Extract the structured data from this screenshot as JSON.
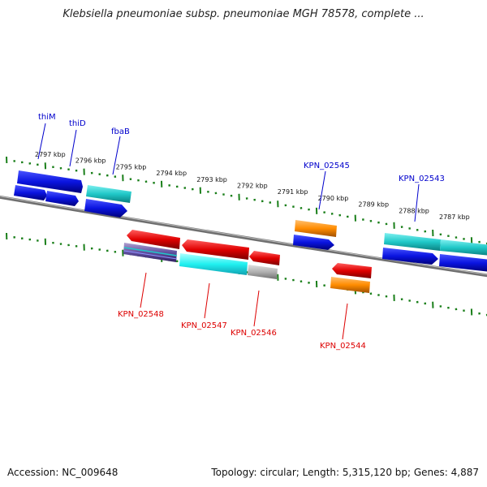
{
  "title": "Klebsiella pneumoniae subsp. pneumoniae MGH 78578, complete ...",
  "footer": {
    "accession": "Accession: NC_009648",
    "topology": "Topology: circular; Length: 5,315,120 bp; Genes: 4,887"
  },
  "ticks": [
    "2797 kbp",
    "2796 kbp",
    "2795 kbp",
    "2794 kbp",
    "2793 kbp",
    "2792 kbp",
    "2791 kbp",
    "2790 kbp",
    "2789 kbp",
    "2788 kbp",
    "2787 kbp"
  ],
  "gene_labels_forward": [
    "thiM",
    "thiD",
    "fbaB",
    "KPN_02545",
    "KPN_02543"
  ],
  "gene_labels_reverse": [
    "KPN_02548",
    "KPN_02547",
    "KPN_02546",
    "KPN_02544"
  ],
  "colors": {
    "forward_label": "#0000cc",
    "reverse_label": "#dd0000",
    "blue_gene": "#0a14e0",
    "cyan_gene": "#20c8c8",
    "red_gene": "#e00000",
    "orange_gene": "#ff8c00",
    "grey_gene": "#b0b0b0",
    "tick_green": "#1a7f1a",
    "backbone": "#7a7a7a"
  }
}
